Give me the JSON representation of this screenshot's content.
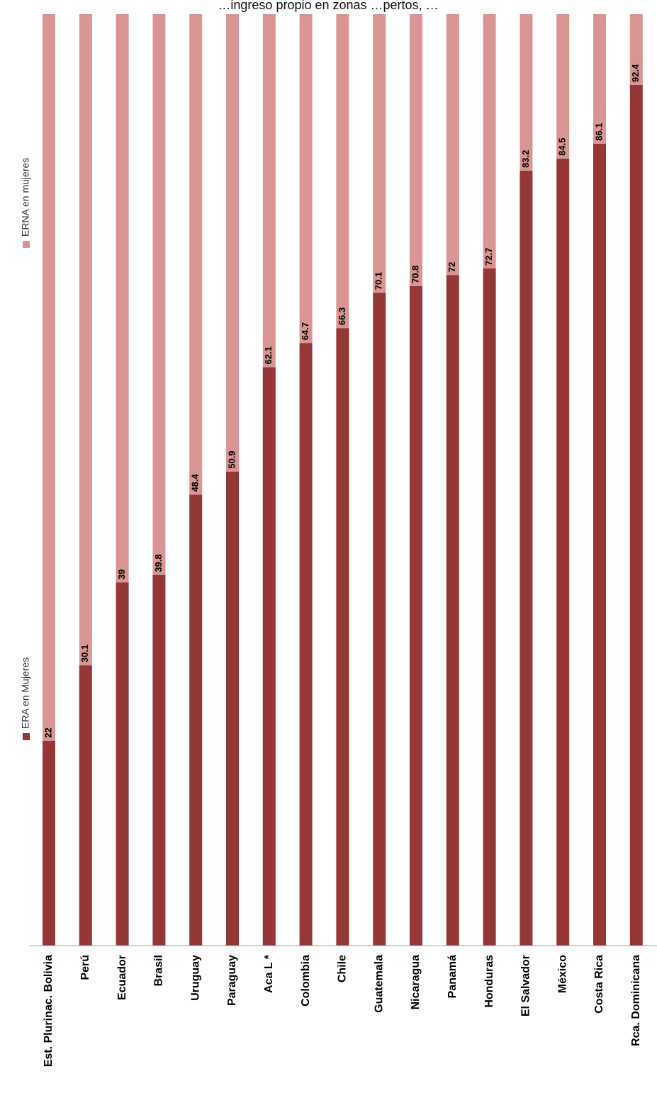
{
  "chart_data": {
    "type": "bar",
    "orientation": "stacked-100-rotated",
    "title": "…ingreso propio en zonas …pertos, …",
    "categories": [
      "Est. Plurinac. Bolivia",
      "Perú",
      "Ecuador",
      "Brasil",
      "Uruguay",
      "Paraguay",
      "Aca L *",
      "Colombia",
      "Chile",
      "Guatemala",
      "Nicaragua",
      "Panamá",
      "Honduras",
      "El Salvador",
      "México",
      "Costa Rica",
      "Rca. Dominicana"
    ],
    "series": [
      {
        "name": "ERA en Mujeres",
        "color": "#953735",
        "values": [
          22,
          30.1,
          39,
          39.8,
          48.4,
          50.9,
          62.1,
          64.7,
          66.3,
          70.1,
          70.8,
          72,
          72.7,
          83.2,
          84.5,
          86.1,
          92.4
        ]
      },
      {
        "name": "ERNA en mujeres",
        "color": "#d99594",
        "values": [
          78,
          69.9,
          61,
          60.2,
          51.6,
          49.1,
          37.9,
          35.3,
          33.7,
          29.9,
          29.2,
          28,
          27.3,
          16.8,
          15.5,
          13.9,
          7.6
        ]
      }
    ],
    "data_labels": [
      "22",
      "30.1",
      "39",
      "39.8",
      "48.4",
      "50.9",
      "62.1",
      "64.7",
      "66.3",
      "70.1",
      "70.8",
      "72",
      "72.7",
      "83.2",
      "84.5",
      "86.1",
      "92.4"
    ],
    "ylim": [
      0,
      100
    ],
    "grid": false,
    "legend": "right"
  }
}
